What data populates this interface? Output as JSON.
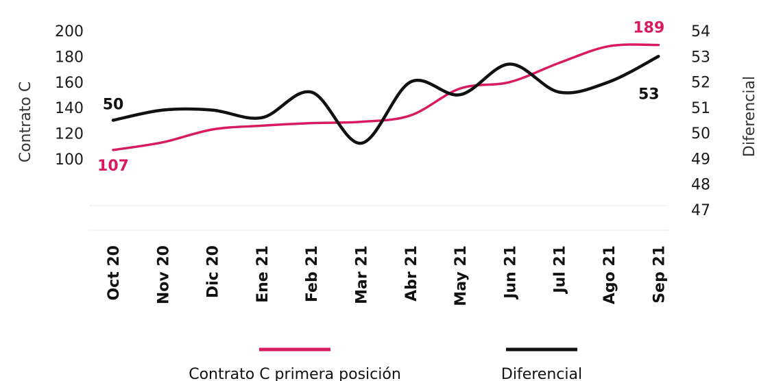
{
  "chart_data": {
    "type": "line",
    "categories": [
      "Oct 20",
      "Nov 20",
      "Dic 20",
      "Ene 21",
      "Feb 21",
      "Mar 21",
      "Abr 21",
      "May 21",
      "Jun 21",
      "Jul 21",
      "Ago 21",
      "Sep 21"
    ],
    "series": [
      {
        "name": "Contrato C primera posición",
        "axis": "left",
        "color": "#d81b60",
        "values": [
          107,
          113,
          123,
          126,
          128,
          129,
          134,
          155,
          160,
          175,
          188,
          189
        ]
      },
      {
        "name": "Diferencial",
        "axis": "right",
        "color": "#111111",
        "values": [
          50.5,
          50.9,
          50.9,
          50.6,
          51.6,
          49.6,
          52.0,
          51.5,
          52.7,
          51.6,
          52.0,
          53.0
        ]
      }
    ],
    "ylabel_left": "Contrato C",
    "ylabel_right": "Diferencial",
    "left_ticks": [
      "200",
      "180",
      "160",
      "140",
      "120",
      "100"
    ],
    "right_ticks": [
      "54",
      "53",
      "52",
      "51",
      "50",
      "49",
      "48",
      "47"
    ],
    "left_ylim": [
      100,
      200
    ],
    "right_ylim": [
      47,
      54
    ],
    "annotations": [
      {
        "text": "50",
        "series": 1,
        "point": 0,
        "color": "#111111"
      },
      {
        "text": "107",
        "series": 0,
        "point": 0,
        "color": "#d81b60"
      },
      {
        "text": "189",
        "series": 0,
        "point": 11,
        "color": "#d81b60"
      },
      {
        "text": "53",
        "series": 1,
        "point": 11,
        "color": "#111111"
      }
    ],
    "legend": {
      "position": "bottom"
    }
  }
}
